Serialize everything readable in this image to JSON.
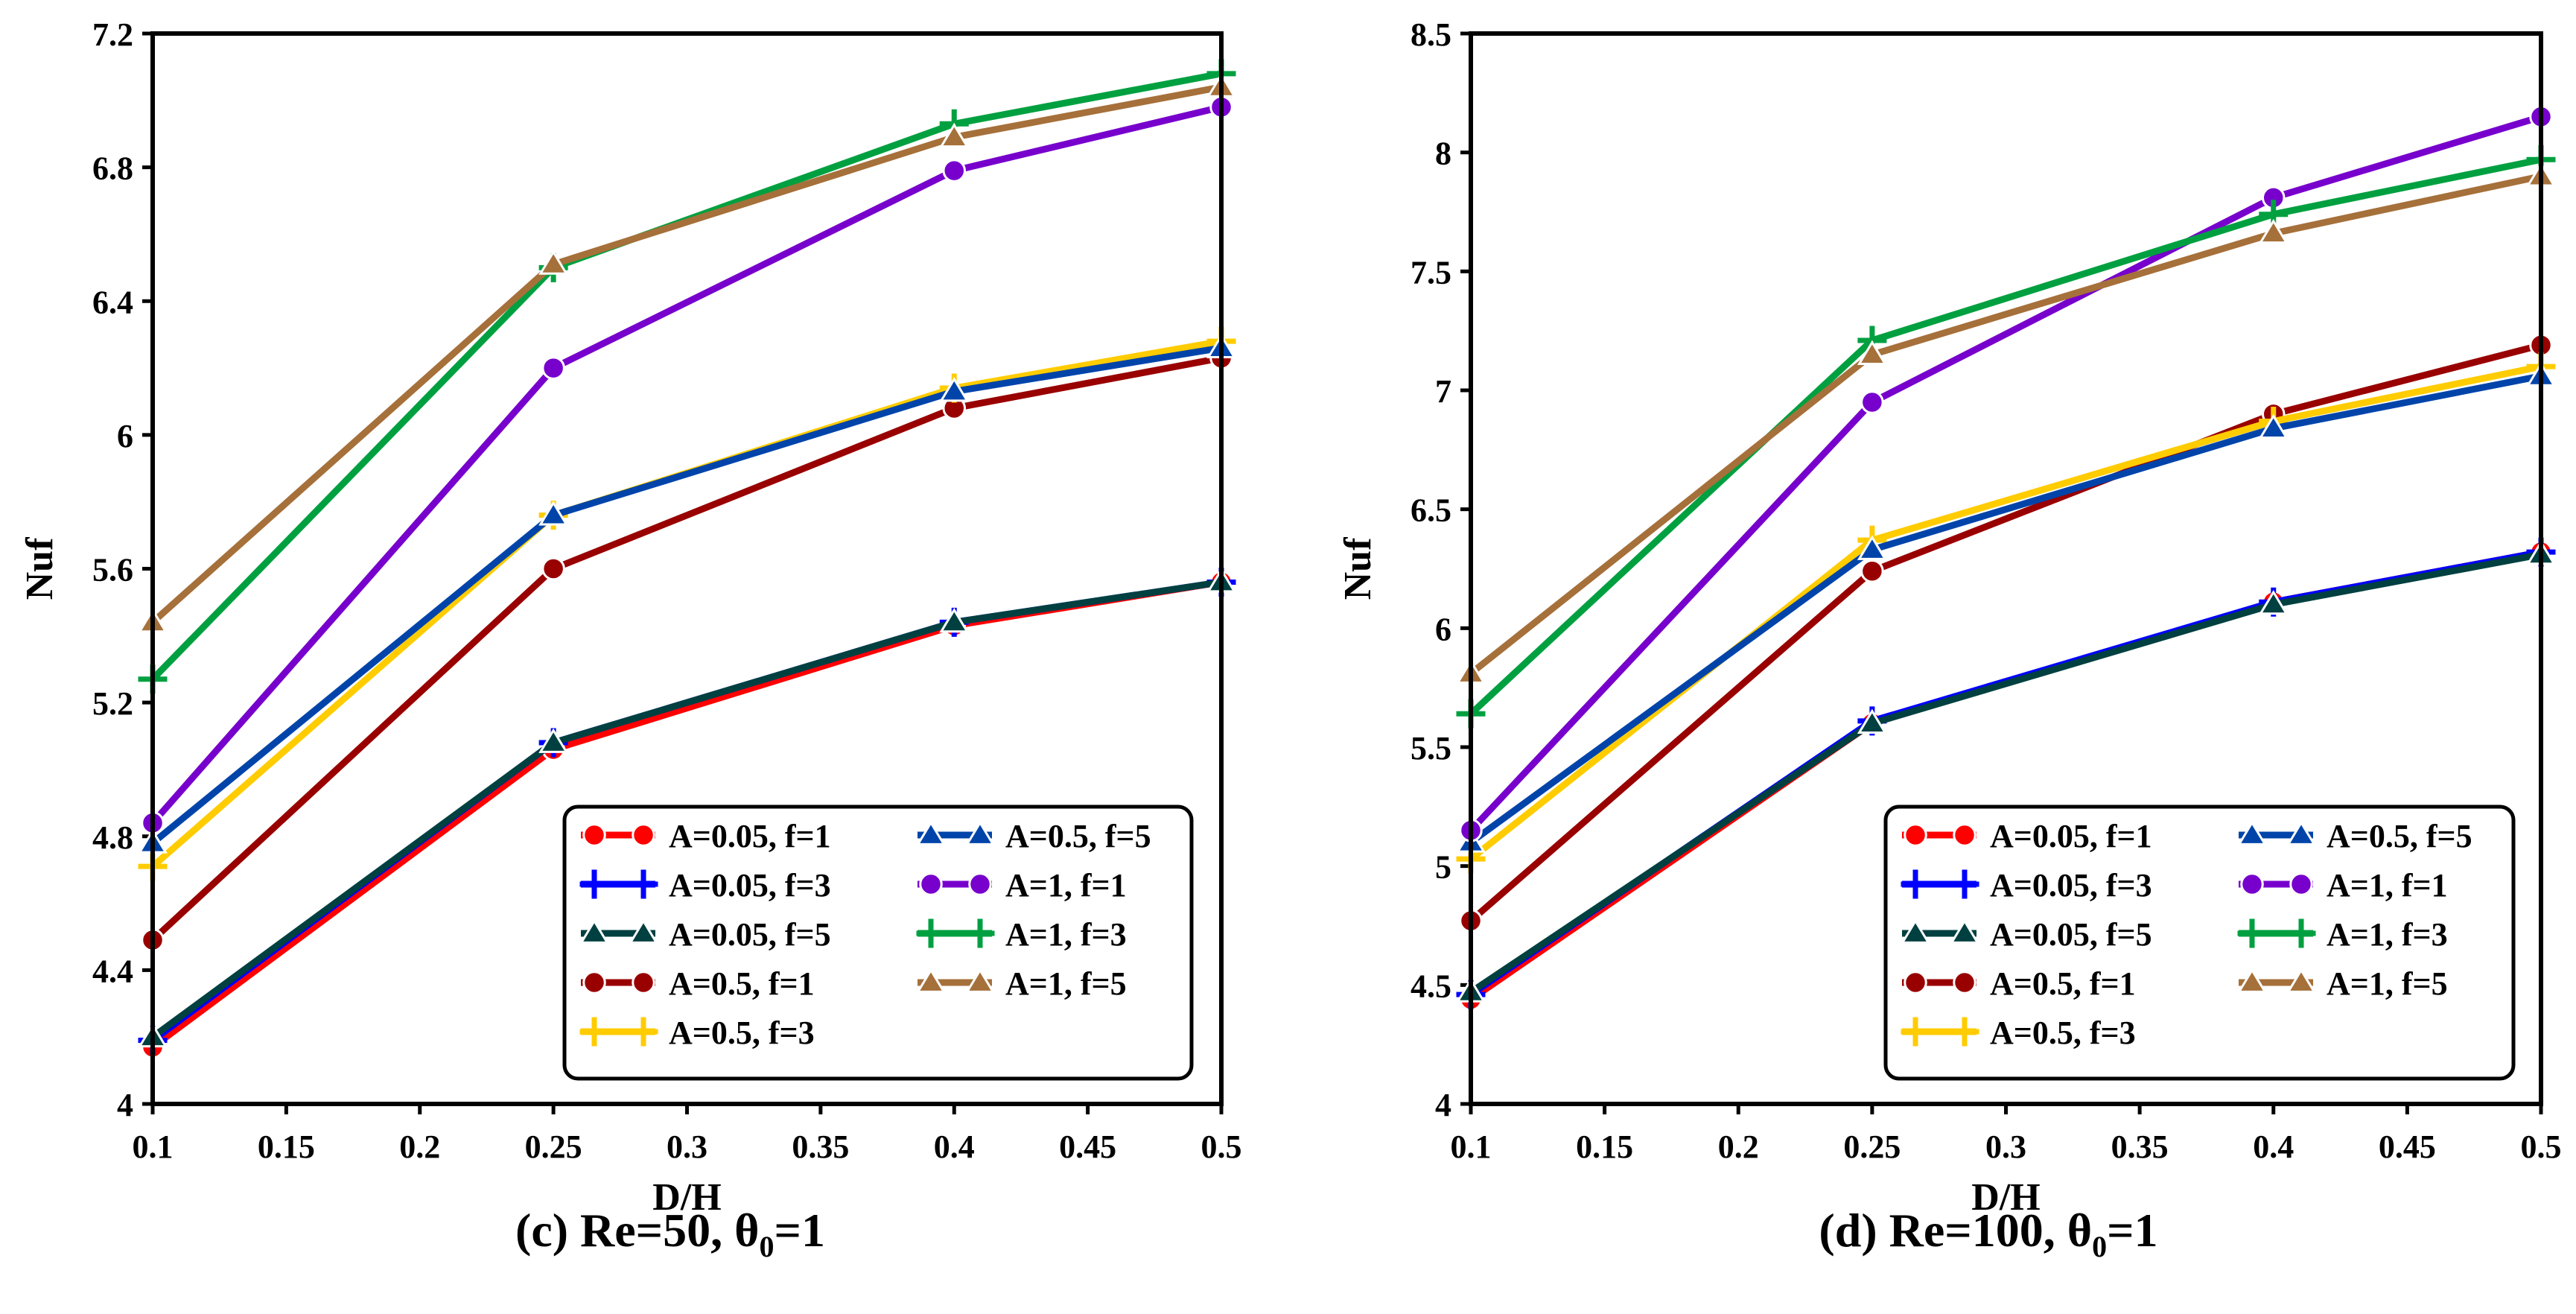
{
  "chart_data": [
    {
      "type": "line",
      "caption": {
        "prefix": "(c) Re=50, θ",
        "sub": "0",
        "suffix": "=1"
      },
      "xlabel": "D/H",
      "ylabel": "Nuf",
      "xlim": [
        0.1,
        0.5
      ],
      "ylim": [
        4,
        7.2
      ],
      "xticks": [
        "0.1",
        "0.15",
        "0.2",
        "0.25",
        "0.3",
        "0.35",
        "0.4",
        "0.45",
        "0.5"
      ],
      "yticks": [
        "4",
        "4.4",
        "4.8",
        "5.2",
        "5.6",
        "6",
        "6.4",
        "6.8",
        "7.2"
      ],
      "legend_position": "bottom-right",
      "x": [
        0.1,
        0.25,
        0.4,
        0.5
      ],
      "series": [
        {
          "name": "A=0.05, f=1",
          "color": "#ff0000",
          "marker": "circle",
          "values": [
            4.17,
            5.06,
            5.43,
            5.56
          ]
        },
        {
          "name": "A=0.05, f=3",
          "color": "#0000ff",
          "marker": "plus",
          "values": [
            4.19,
            5.08,
            5.44,
            5.56
          ]
        },
        {
          "name": "A=0.05, f=5",
          "color": "#004040",
          "marker": "triangle",
          "values": [
            4.2,
            5.08,
            5.44,
            5.56
          ]
        },
        {
          "name": "A=0.5, f=1",
          "color": "#990000",
          "marker": "circle",
          "values": [
            4.49,
            5.6,
            6.08,
            6.23
          ]
        },
        {
          "name": "A=0.5, f=3",
          "color": "#ffcc00",
          "marker": "plus",
          "values": [
            4.71,
            5.76,
            6.14,
            6.28
          ]
        },
        {
          "name": "A=0.5, f=5",
          "color": "#0044aa",
          "marker": "triangle",
          "values": [
            4.78,
            5.76,
            6.13,
            6.26
          ]
        },
        {
          "name": "A=1, f=1",
          "color": "#7700cc",
          "marker": "circle",
          "values": [
            4.84,
            6.2,
            6.79,
            6.98
          ]
        },
        {
          "name": "A=1, f=3",
          "color": "#00a040",
          "marker": "plus",
          "values": [
            5.27,
            6.5,
            6.93,
            7.08
          ]
        },
        {
          "name": "A=1, f=5",
          "color": "#a6703a",
          "marker": "triangle",
          "values": [
            5.44,
            6.51,
            6.89,
            7.04
          ]
        }
      ]
    },
    {
      "type": "line",
      "caption": {
        "prefix": "(d) Re=100, θ",
        "sub": "0",
        "suffix": "=1"
      },
      "xlabel": "D/H",
      "ylabel": "Nuf",
      "xlim": [
        0.1,
        0.5
      ],
      "ylim": [
        4,
        8.5
      ],
      "xticks": [
        "0.1",
        "0.15",
        "0.2",
        "0.25",
        "0.3",
        "0.35",
        "0.4",
        "0.45",
        "0.5"
      ],
      "yticks": [
        "4",
        "4.5",
        "5",
        "5.5",
        "6",
        "6.5",
        "7",
        "7.5",
        "8",
        "8.5"
      ],
      "legend_position": "bottom-right",
      "x": [
        0.1,
        0.25,
        0.4,
        0.5
      ],
      "series": [
        {
          "name": "A=0.05, f=1",
          "color": "#ff0000",
          "marker": "circle",
          "values": [
            4.44,
            5.6,
            6.11,
            6.32
          ]
        },
        {
          "name": "A=0.05, f=3",
          "color": "#0000ff",
          "marker": "plus",
          "values": [
            4.46,
            5.61,
            6.11,
            6.32
          ]
        },
        {
          "name": "A=0.05, f=5",
          "color": "#004040",
          "marker": "triangle",
          "values": [
            4.47,
            5.6,
            6.1,
            6.31
          ]
        },
        {
          "name": "A=0.5, f=1",
          "color": "#990000",
          "marker": "circle",
          "values": [
            4.77,
            6.24,
            6.9,
            7.19
          ]
        },
        {
          "name": "A=0.5, f=3",
          "color": "#ffcc00",
          "marker": "plus",
          "values": [
            5.03,
            6.37,
            6.87,
            7.1
          ]
        },
        {
          "name": "A=0.5, f=5",
          "color": "#0044aa",
          "marker": "triangle",
          "values": [
            5.1,
            6.33,
            6.84,
            7.06
          ]
        },
        {
          "name": "A=1, f=1",
          "color": "#7700cc",
          "marker": "circle",
          "values": [
            5.15,
            6.95,
            7.81,
            8.15
          ]
        },
        {
          "name": "A=1, f=3",
          "color": "#00a040",
          "marker": "plus",
          "values": [
            5.64,
            7.21,
            7.74,
            7.97
          ]
        },
        {
          "name": "A=1, f=5",
          "color": "#a6703a",
          "marker": "triangle",
          "values": [
            5.81,
            7.15,
            7.66,
            7.9
          ]
        }
      ]
    }
  ]
}
